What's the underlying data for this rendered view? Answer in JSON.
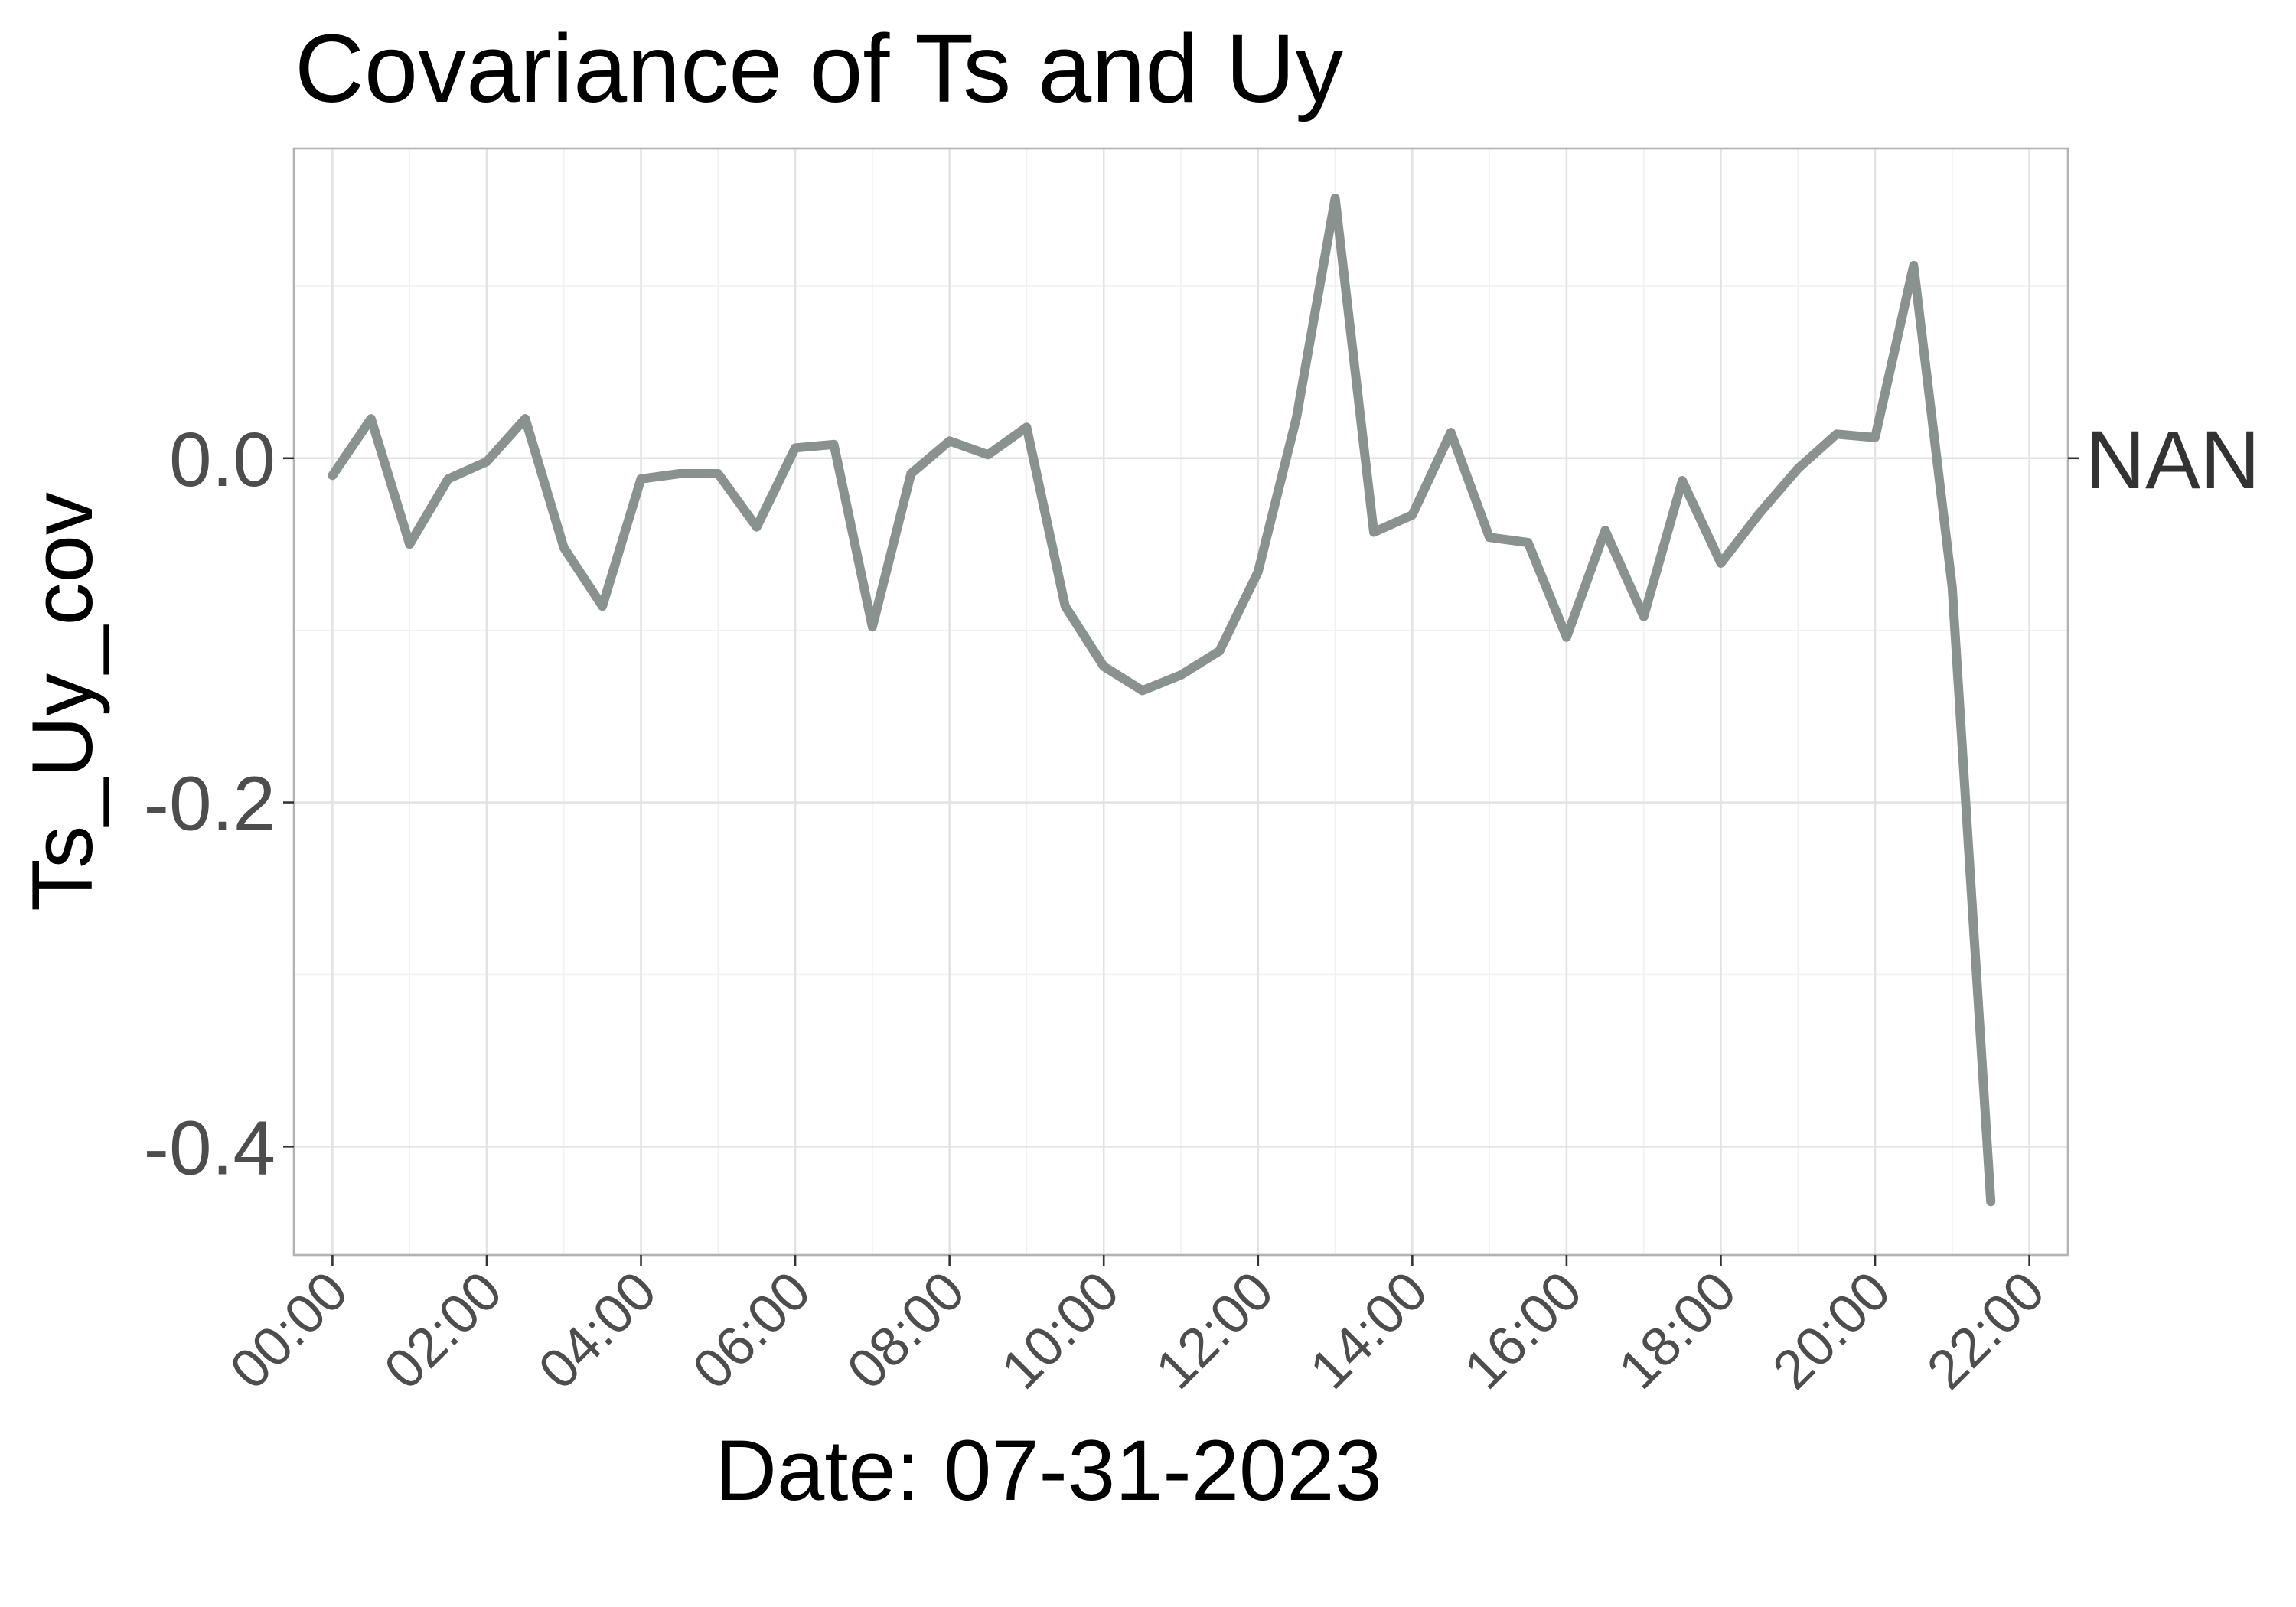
{
  "chart_data": {
    "type": "line",
    "title": "Covariance of Ts and Uy",
    "xlabel": "Date: 07-31-2023",
    "ylabel": "Ts_Uy_cov",
    "right_label": "NAN",
    "line_color": "#8a9290",
    "grid": true,
    "xlim": [
      "-00:30",
      "22:30"
    ],
    "ylim": [
      -0.463,
      0.18
    ],
    "x_ticks": [
      "00:00",
      "02:00",
      "04:00",
      "06:00",
      "08:00",
      "10:00",
      "12:00",
      "14:00",
      "16:00",
      "18:00",
      "20:00",
      "22:00"
    ],
    "y_ticks": [
      0.0,
      -0.2,
      -0.4
    ],
    "y_tick_labels": [
      "0.0",
      "-0.2",
      "-0.4"
    ],
    "series": [
      {
        "x": [
          "00:00",
          "00:30",
          "01:00",
          "01:30",
          "02:00",
          "02:30",
          "03:00",
          "03:30",
          "04:00",
          "04:30",
          "05:00",
          "05:30",
          "06:00",
          "06:30",
          "07:00",
          "07:30",
          "08:00",
          "08:30",
          "09:00",
          "09:30",
          "10:00",
          "10:30",
          "11:00",
          "11:30",
          "12:00",
          "12:30",
          "13:00",
          "13:30",
          "14:00",
          "14:30",
          "15:00",
          "15:30",
          "16:00",
          "16:30",
          "17:00",
          "17:30",
          "18:00",
          "18:30",
          "19:00",
          "19:30",
          "20:00",
          "20:30",
          "21:00",
          "21:30"
        ],
        "values": [
          -0.01,
          0.023,
          -0.05,
          -0.012,
          -0.002,
          0.023,
          -0.052,
          -0.086,
          -0.012,
          -0.009,
          -0.009,
          -0.04,
          0.006,
          0.008,
          -0.098,
          -0.009,
          0.01,
          0.002,
          0.018,
          -0.086,
          -0.121,
          -0.135,
          -0.126,
          -0.112,
          -0.066,
          0.024,
          0.151,
          -0.043,
          -0.033,
          0.015,
          -0.046,
          -0.049,
          -0.104,
          -0.042,
          -0.092,
          -0.013,
          -0.061,
          -0.032,
          -0.006,
          0.014,
          0.012,
          0.112,
          -0.075,
          -0.432
        ]
      }
    ]
  }
}
